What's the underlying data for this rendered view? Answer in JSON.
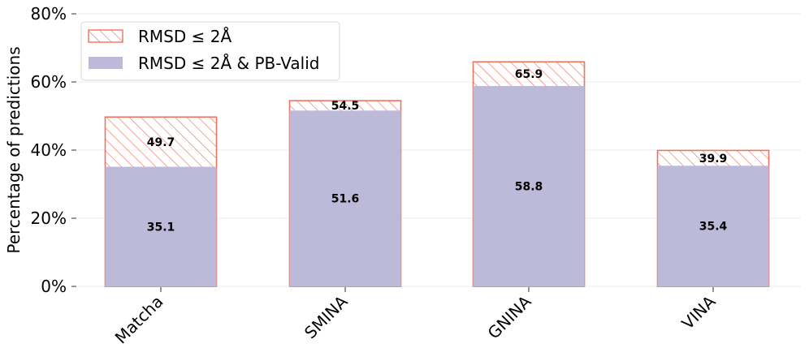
{
  "chart_data": {
    "type": "bar",
    "stacked_overlay": true,
    "title": "",
    "xlabel": "",
    "ylabel": "Percentage of predictions",
    "ylim": [
      0,
      80
    ],
    "yticks": [
      0,
      20,
      40,
      60,
      80
    ],
    "ytick_labels": [
      "0%",
      "20%",
      "40%",
      "60%",
      "80%"
    ],
    "grid": true,
    "legend_position": "top-left",
    "categories": [
      "Matcha",
      "SMINA",
      "GNINA",
      "VINA"
    ],
    "series": [
      {
        "name": "RMSD ≤ 2Å",
        "values": [
          49.7,
          54.5,
          65.9,
          39.9
        ],
        "style": "hatched",
        "color": "#f0735f"
      },
      {
        "name": "RMSD ≤ 2Å & PB-Valid",
        "values": [
          35.1,
          51.6,
          58.8,
          35.4
        ],
        "style": "filled",
        "color": "#bdbad9"
      }
    ],
    "value_labels": {
      "RMSD ≤ 2Å": [
        "49.7",
        "54.5",
        "65.9",
        "39.9"
      ],
      "RMSD ≤ 2Å & PB-Valid": [
        "35.1",
        "51.6",
        "58.8",
        "35.4"
      ]
    }
  }
}
